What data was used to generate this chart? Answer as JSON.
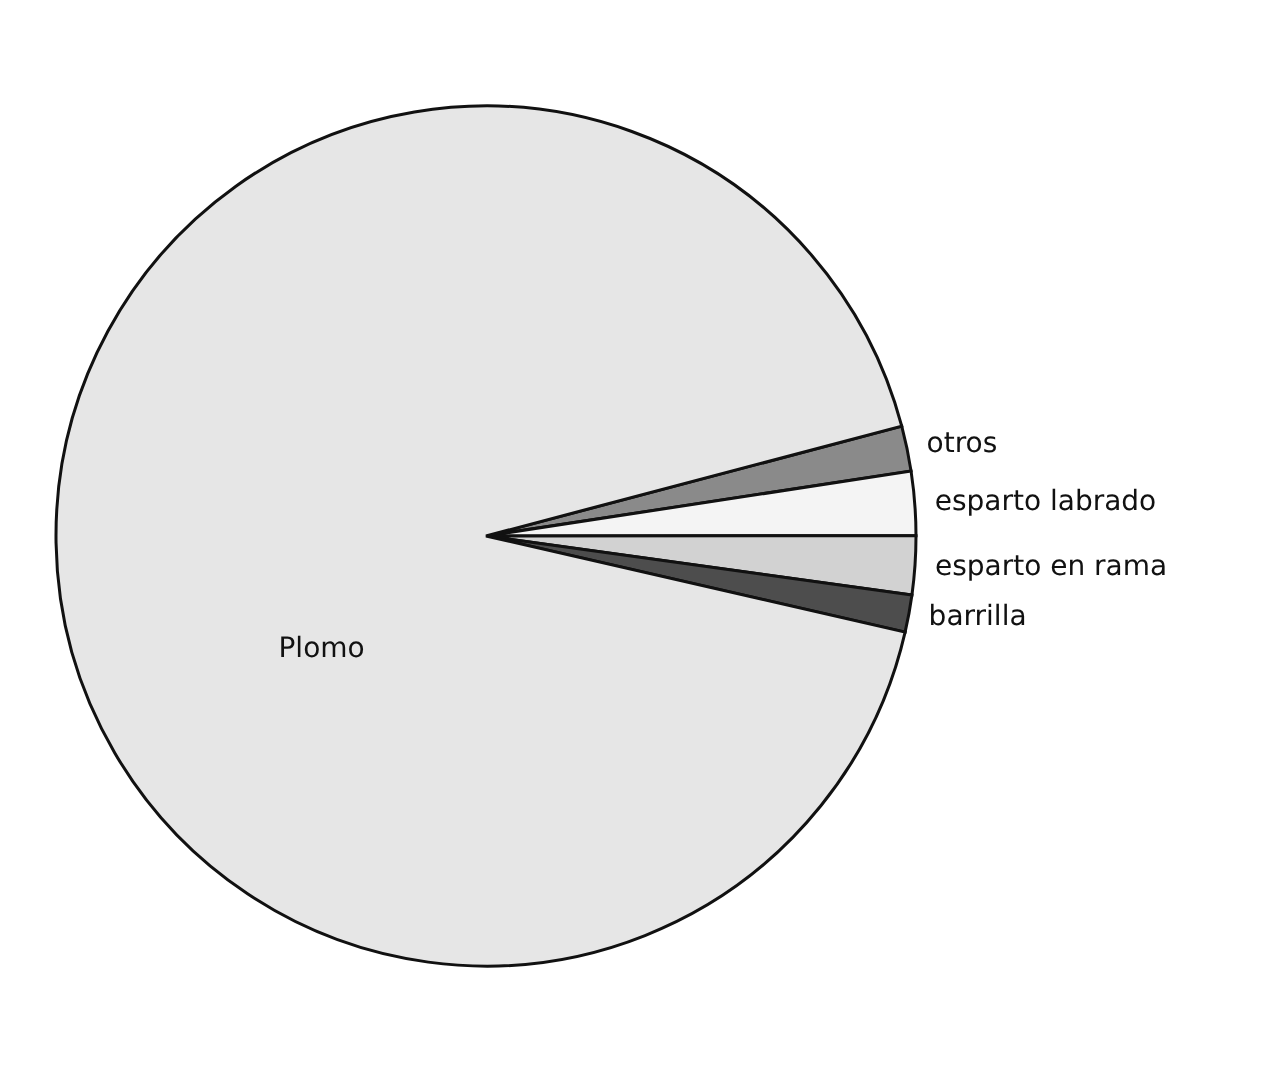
{
  "chart_data": {
    "type": "pie",
    "categories": [
      "otros",
      "esparto labrado",
      "esparto en rama",
      "barrilla",
      "Plomo"
    ],
    "values": [
      1.7,
      2.4,
      2.2,
      1.4,
      92.3
    ],
    "colors": [
      "#8a8a8a",
      "#f4f4f4",
      "#d2d2d2",
      "#4d4d4d",
      "#e6e6e6"
    ],
    "legend": false
  }
}
